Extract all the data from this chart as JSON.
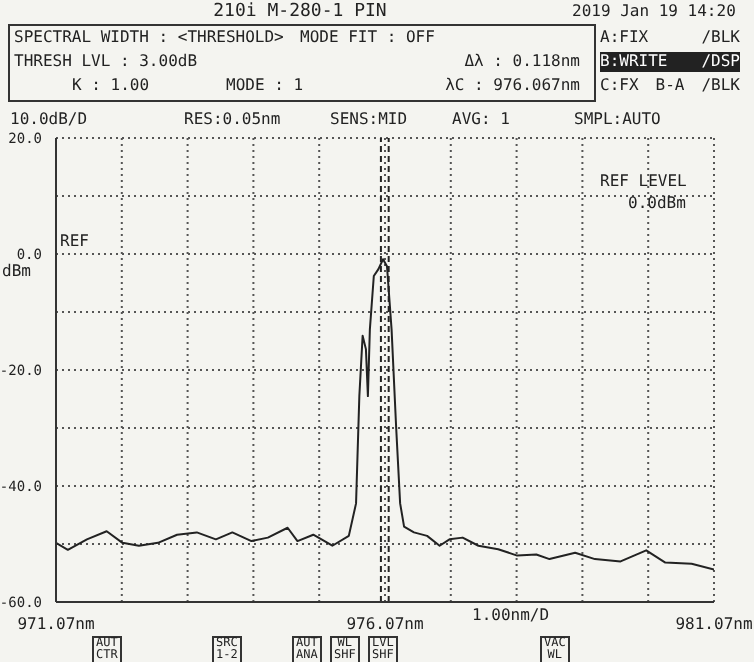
{
  "chart_data": {
    "type": "line",
    "title": "210i M-280-1 PIN",
    "ylabel": "dBm",
    "xlabel": "1.00nm/D",
    "annotations": [
      "2019 Jan 19 14:20",
      "SPECTRAL WIDTH : <THRESHOLD>",
      "MODE FIT : OFF",
      "THRESH LVL : 3.00dB",
      "Δλ : 0.118nm",
      "K : 1.00",
      "MODE : 1",
      "λC : 976.067nm",
      "A:FIX /BLK",
      "B:WRITE /DSP",
      "C:FX B-A /BLK",
      "10.0dB/D",
      "RES:0.05nm",
      "SENS:MID",
      "AVG: 1",
      "SMPL:AUTO",
      "REF LEVEL",
      "0.0dBm",
      "REF",
      "AUT CTR",
      "SRC 1-2",
      "AUT ANA",
      "WL SHF",
      "LVL SHF",
      "VAC WL"
    ],
    "x": [
      971.07,
      971.25,
      971.54,
      971.84,
      972.08,
      972.33,
      972.62,
      972.91,
      973.21,
      973.5,
      973.75,
      974.04,
      974.29,
      974.59,
      974.74,
      974.98,
      975.27,
      975.52,
      975.63,
      975.68,
      975.73,
      975.78,
      975.81,
      975.84,
      975.9,
      975.97,
      976.04,
      976.1,
      976.17,
      976.24,
      976.3,
      976.36,
      976.51,
      976.71,
      976.9,
      977.05,
      977.25,
      977.49,
      977.79,
      978.08,
      978.37,
      978.57,
      978.96,
      979.26,
      979.65,
      980.04,
      980.33,
      980.73,
      981.07
    ],
    "series": [
      {
        "color": "#222222",
        "values": [
          -49.8,
          -51,
          -49.2,
          -47.8,
          -49.8,
          -50.3,
          -49.8,
          -48.4,
          -48,
          -49.2,
          -48,
          -49.5,
          -48.9,
          -47.2,
          -49.5,
          -48.4,
          -50.3,
          -48.6,
          -43,
          -24.5,
          -14.1,
          -16.4,
          -24.5,
          -13,
          -3.8,
          -2.6,
          -0.9,
          -2.1,
          -13,
          -30,
          -43,
          -47,
          -48,
          -48.6,
          -50.3,
          -49.2,
          -48.9,
          -50.3,
          -50.9,
          -52,
          -51.8,
          -52.6,
          -51.5,
          -52.6,
          -53,
          -51.1,
          -53.2,
          -53.4,
          -54.4
        ]
      }
    ],
    "xlim": [
      971.07,
      981.07
    ],
    "xticks": [
      {
        "value": 971.07,
        "label": "971.07nm"
      },
      {
        "value": 972.07,
        "label": null
      },
      {
        "value": 973.07,
        "label": null
      },
      {
        "value": 974.07,
        "label": null
      },
      {
        "value": 975.07,
        "label": null
      },
      {
        "value": 976.07,
        "label": "976.07nm"
      },
      {
        "value": 977.07,
        "label": null
      },
      {
        "value": 978.07,
        "label": null
      },
      {
        "value": 979.07,
        "label": null
      },
      {
        "value": 980.07,
        "label": null
      },
      {
        "value": 981.07,
        "label": "981.07nm"
      }
    ],
    "ylim": [
      -60,
      20
    ],
    "yticks": [
      {
        "value": 20,
        "label": "20.0"
      },
      {
        "value": 10,
        "label": null
      },
      {
        "value": 0,
        "label": "0.0"
      },
      {
        "value": -10,
        "label": null
      },
      {
        "value": -20,
        "label": "-20.0"
      },
      {
        "value": -30,
        "label": null
      },
      {
        "value": -40,
        "label": "-40.0"
      },
      {
        "value": -50,
        "label": null
      },
      {
        "value": -60,
        "label": "-60.0"
      }
    ],
    "ref_lines": [
      {
        "axis": "x",
        "value": 976.008,
        "line_style": "dashed",
        "color": "#222222"
      },
      {
        "axis": "x",
        "value": 976.126,
        "line_style": "dashed",
        "color": "#222222"
      }
    ],
    "grid": true,
    "marker": "none",
    "line_style": "solid"
  }
}
